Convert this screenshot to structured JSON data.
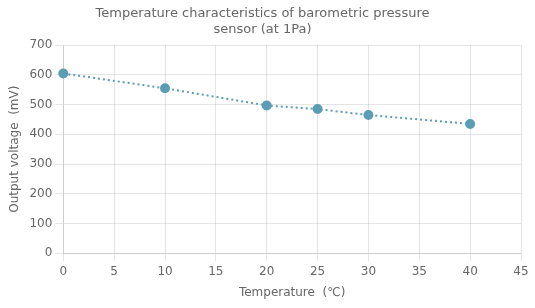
{
  "chart_data": {
    "type": "line",
    "title": "Temperature characteristics of barometric pressure\nsensor (at 1Pa)",
    "xlabel": "Temperature  (℃)",
    "ylabel": "Output voltage  (mV)",
    "x": [
      0,
      10,
      20,
      25,
      30,
      40
    ],
    "values": [
      605,
      555,
      497,
      485,
      465,
      435
    ],
    "color": "#5b9db5",
    "line_style": "dotted",
    "marker": "circle",
    "xlim": [
      0,
      45
    ],
    "ylim": [
      0,
      700
    ],
    "xticks": [
      0,
      5,
      10,
      15,
      20,
      25,
      30,
      35,
      40,
      45
    ],
    "yticks": [
      0,
      100,
      200,
      300,
      400,
      500,
      600,
      700
    ],
    "grid": true
  }
}
